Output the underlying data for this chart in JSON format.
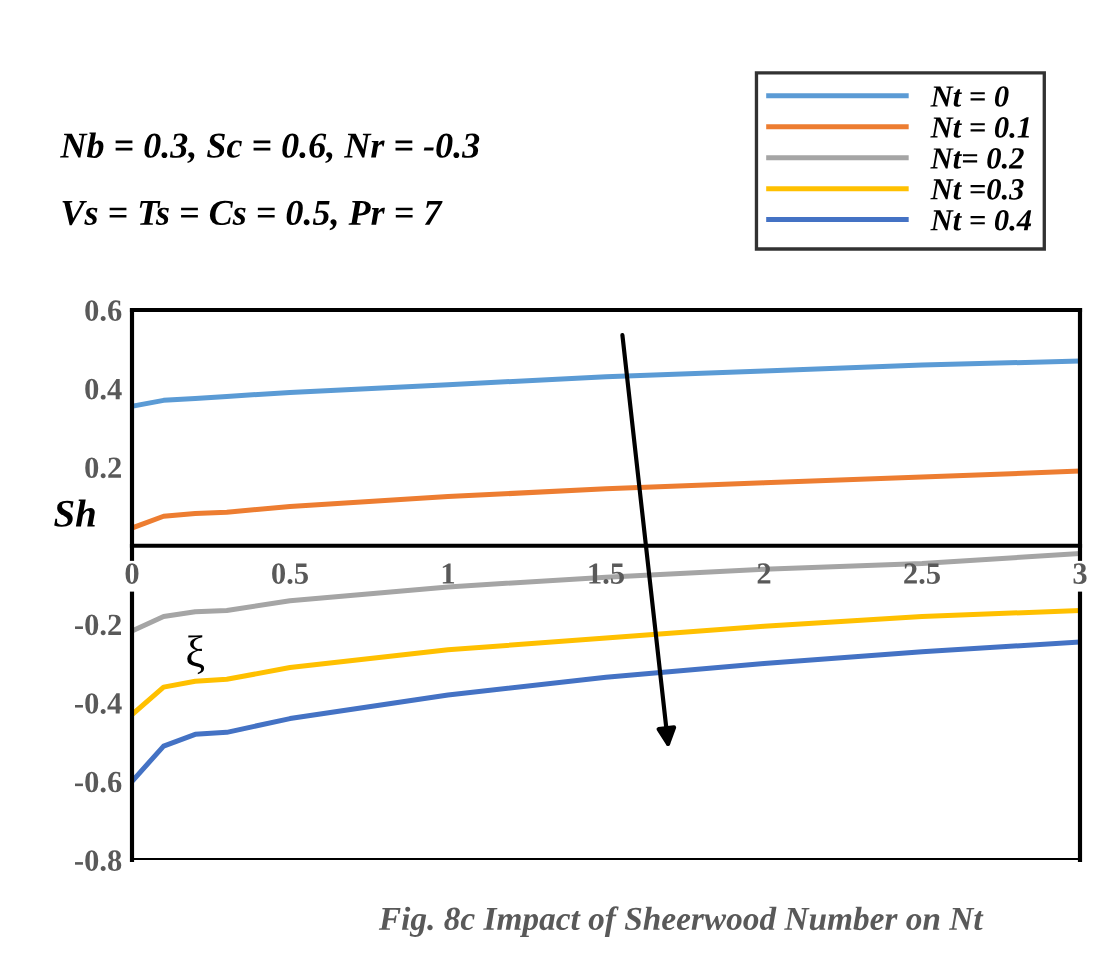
{
  "chart_data": {
    "type": "line",
    "xlabel": "ξ",
    "ylabel": "Sh",
    "annotations": [
      "Nb = 0.3, Sc = 0.6, Nr = -0.3",
      "Vs = Ts = Cs = 0.5, Pr = 7",
      "Fig. 8c Impact of Sheerwood Number on Nt"
    ],
    "x": [
      0,
      0.1,
      0.2,
      0.3,
      0.5,
      1,
      1.5,
      2,
      2.5,
      3
    ],
    "series": [
      {
        "name": "Nt = 0",
        "color": "#5b9bd5",
        "values": [
          0.355,
          0.37,
          0.375,
          0.38,
          0.39,
          0.41,
          0.43,
          0.445,
          0.46,
          0.47
        ]
      },
      {
        "name": "Nt = 0.1",
        "color": "#ed7d31",
        "values": [
          0.045,
          0.075,
          0.082,
          0.085,
          0.1,
          0.125,
          0.145,
          0.16,
          0.175,
          0.19
        ]
      },
      {
        "name": "Nt= 0.2",
        "color": "#a5a5a5",
        "values": [
          -0.217,
          -0.18,
          -0.168,
          -0.165,
          -0.14,
          -0.105,
          -0.08,
          -0.06,
          -0.045,
          -0.02
        ]
      },
      {
        "name": "Nt =0.3",
        "color": "#ffc000",
        "values": [
          -0.43,
          -0.36,
          -0.345,
          -0.34,
          -0.31,
          -0.265,
          -0.235,
          -0.205,
          -0.18,
          -0.165
        ]
      },
      {
        "name": "Nt = 0.4",
        "color": "#4472c4",
        "values": [
          -0.6,
          -0.51,
          -0.48,
          -0.475,
          -0.44,
          -0.38,
          -0.335,
          -0.3,
          -0.27,
          -0.245
        ]
      }
    ],
    "xlim": [
      0,
      3
    ],
    "ylim": [
      -0.8,
      0.6
    ],
    "xticks": [
      0,
      0.5,
      1,
      1.5,
      2,
      2.5,
      3
    ],
    "yticks": [
      -0.8,
      -0.6,
      -0.4,
      -0.2,
      0.2,
      0.4,
      0.6
    ],
    "grid": false,
    "legend": "top right",
    "marker": "none",
    "line_style": "solid"
  }
}
